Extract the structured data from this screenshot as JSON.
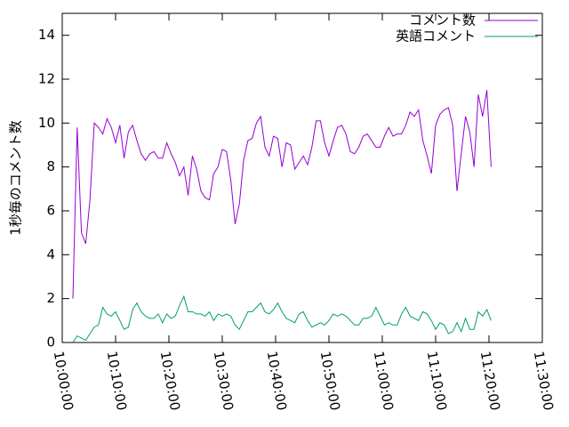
{
  "chart_data": {
    "type": "line",
    "ylabel": "1秒毎のコメント数",
    "xlim": [
      "10:00:00",
      "11:30:00"
    ],
    "xticks": [
      "10:00:00",
      "10:10:00",
      "10:20:00",
      "10:30:00",
      "10:40:00",
      "10:50:00",
      "11:00:00",
      "11:10:00",
      "11:20:00",
      "11:30:00"
    ],
    "ylim": [
      0,
      15
    ],
    "yticks": [
      0,
      2,
      4,
      6,
      8,
      10,
      12,
      14
    ],
    "grid": false,
    "legend": "top-right",
    "x": [
      "10:02:00",
      "10:02:48",
      "10:03:36",
      "10:04:24",
      "10:05:12",
      "10:06:00",
      "10:06:48",
      "10:07:36",
      "10:08:24",
      "10:09:12",
      "10:10:00",
      "10:10:48",
      "10:11:36",
      "10:12:24",
      "10:13:12",
      "10:14:00",
      "10:14:48",
      "10:15:36",
      "10:16:24",
      "10:17:12",
      "10:18:00",
      "10:18:48",
      "10:19:36",
      "10:20:24",
      "10:21:12",
      "10:22:00",
      "10:22:48",
      "10:23:36",
      "10:24:24",
      "10:25:12",
      "10:26:00",
      "10:26:48",
      "10:27:36",
      "10:28:24",
      "10:29:12",
      "10:30:00",
      "10:30:48",
      "10:31:36",
      "10:32:24",
      "10:33:12",
      "10:34:00",
      "10:34:48",
      "10:35:36",
      "10:36:24",
      "10:37:12",
      "10:38:00",
      "10:38:48",
      "10:39:36",
      "10:40:24",
      "10:41:12",
      "10:42:00",
      "10:42:48",
      "10:43:36",
      "10:44:24",
      "10:45:12",
      "10:46:00",
      "10:46:48",
      "10:47:36",
      "10:48:24",
      "10:49:12",
      "10:50:00",
      "10:50:48",
      "10:51:36",
      "10:52:24",
      "10:53:12",
      "10:54:00",
      "10:54:48",
      "10:55:36",
      "10:56:24",
      "10:57:12",
      "10:58:00",
      "10:58:48",
      "10:59:36",
      "11:00:24",
      "11:01:12",
      "11:02:00",
      "11:02:48",
      "11:03:36",
      "11:04:24",
      "11:05:12",
      "11:06:00",
      "11:06:48",
      "11:07:36",
      "11:08:24",
      "11:09:12",
      "11:10:00",
      "11:10:48",
      "11:11:36",
      "11:12:24",
      "11:13:12",
      "11:14:00",
      "11:14:48",
      "11:15:36",
      "11:16:24",
      "11:17:12",
      "11:18:00",
      "11:18:48",
      "11:19:36",
      "11:20:24"
    ],
    "series": [
      {
        "name": "コメント数",
        "color": "#9400d3",
        "values": [
          2.0,
          9.8,
          5.0,
          4.5,
          6.5,
          10.0,
          9.8,
          9.5,
          10.2,
          9.8,
          9.1,
          9.9,
          8.4,
          9.6,
          9.9,
          9.2,
          8.6,
          8.3,
          8.6,
          8.7,
          8.4,
          8.4,
          9.1,
          8.6,
          8.2,
          7.6,
          8.0,
          6.7,
          8.5,
          7.9,
          6.9,
          6.6,
          6.5,
          7.7,
          8.0,
          8.8,
          8.7,
          7.4,
          5.4,
          6.3,
          8.3,
          9.2,
          9.3,
          10.0,
          10.3,
          8.9,
          8.5,
          9.4,
          9.3,
          8.0,
          9.1,
          9.0,
          7.9,
          8.2,
          8.5,
          8.1,
          8.9,
          10.1,
          10.1,
          9.1,
          8.5,
          9.2,
          9.8,
          9.9,
          9.5,
          8.7,
          8.6,
          8.9,
          9.4,
          9.5,
          9.2,
          8.9,
          8.9,
          9.4,
          9.8,
          9.4,
          9.5,
          9.5,
          9.9,
          10.5,
          10.3,
          10.6,
          9.2,
          8.5,
          7.7,
          9.9,
          10.4,
          10.6,
          10.7,
          9.9,
          6.9,
          8.6,
          10.3,
          9.6,
          8.0,
          11.3,
          10.3,
          11.5,
          8.0
        ]
      },
      {
        "name": "英語コメント",
        "color": "#009e73",
        "values": [
          0.0,
          0.3,
          0.2,
          0.1,
          0.4,
          0.7,
          0.8,
          1.6,
          1.3,
          1.2,
          1.4,
          1.0,
          0.6,
          0.7,
          1.5,
          1.8,
          1.4,
          1.2,
          1.1,
          1.1,
          1.3,
          0.9,
          1.3,
          1.1,
          1.2,
          1.7,
          2.1,
          1.4,
          1.4,
          1.3,
          1.3,
          1.2,
          1.4,
          1.0,
          1.3,
          1.2,
          1.3,
          1.2,
          0.8,
          0.6,
          1.0,
          1.4,
          1.4,
          1.6,
          1.8,
          1.4,
          1.3,
          1.5,
          1.8,
          1.4,
          1.1,
          1.0,
          0.9,
          1.3,
          1.4,
          1.0,
          0.7,
          0.8,
          0.9,
          0.8,
          1.0,
          1.3,
          1.2,
          1.3,
          1.2,
          1.0,
          0.8,
          0.8,
          1.1,
          1.1,
          1.2,
          1.6,
          1.2,
          0.8,
          0.9,
          0.8,
          0.8,
          1.3,
          1.6,
          1.2,
          1.1,
          1.0,
          1.4,
          1.3,
          1.0,
          0.6,
          0.9,
          0.8,
          0.4,
          0.5,
          0.9,
          0.5,
          1.1,
          0.6,
          0.6,
          1.4,
          1.2,
          1.5,
          1.0
        ]
      }
    ]
  }
}
